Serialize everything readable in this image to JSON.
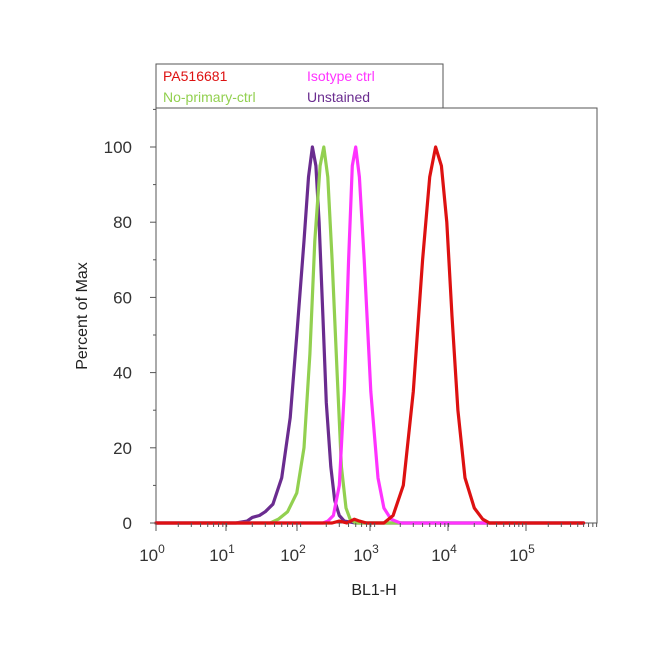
{
  "chart_data": {
    "type": "line",
    "xlabel": "BL1-H",
    "ylabel": "Percent of Max",
    "xscale": "log",
    "xlim": [
      1,
      600000
    ],
    "ylim": [
      0,
      110
    ],
    "y_ticks": [
      "0",
      "20",
      "40",
      "60",
      "80",
      "100"
    ],
    "x_ticks": [
      {
        "base": "10",
        "exp": "0"
      },
      {
        "base": "10",
        "exp": "1"
      },
      {
        "base": "10",
        "exp": "2"
      },
      {
        "base": "10",
        "exp": "3"
      },
      {
        "base": "10",
        "exp": "4"
      },
      {
        "base": "10",
        "exp": "5"
      }
    ],
    "grid": false,
    "legend_position": "top-left",
    "series": [
      {
        "name": "Unstained",
        "color": "#6a2c8f",
        "points": [
          [
            1,
            0
          ],
          [
            12,
            0
          ],
          [
            17,
            0.5
          ],
          [
            20,
            1.5
          ],
          [
            25,
            2
          ],
          [
            30,
            3
          ],
          [
            38,
            5
          ],
          [
            50,
            12
          ],
          [
            65,
            28
          ],
          [
            80,
            50
          ],
          [
            100,
            75
          ],
          [
            115,
            92
          ],
          [
            130,
            100
          ],
          [
            145,
            95
          ],
          [
            160,
            80
          ],
          [
            180,
            55
          ],
          [
            200,
            32
          ],
          [
            230,
            15
          ],
          [
            260,
            6
          ],
          [
            300,
            2
          ],
          [
            350,
            0.5
          ],
          [
            500,
            0
          ],
          [
            600000,
            0
          ]
        ]
      },
      {
        "name": "No-primary-ctrl",
        "color": "#92d050",
        "points": [
          [
            1,
            0
          ],
          [
            35,
            0
          ],
          [
            45,
            1
          ],
          [
            60,
            3
          ],
          [
            80,
            8
          ],
          [
            100,
            20
          ],
          [
            120,
            45
          ],
          [
            140,
            75
          ],
          [
            165,
            95
          ],
          [
            185,
            100
          ],
          [
            210,
            92
          ],
          [
            240,
            70
          ],
          [
            280,
            40
          ],
          [
            320,
            15
          ],
          [
            370,
            4
          ],
          [
            420,
            1
          ],
          [
            500,
            0
          ],
          [
            600000,
            0
          ]
        ]
      },
      {
        "name": "Isotype ctrl",
        "color": "#ff33ff",
        "points": [
          [
            1,
            0
          ],
          [
            180,
            0
          ],
          [
            210,
            0.5
          ],
          [
            250,
            2
          ],
          [
            300,
            10
          ],
          [
            350,
            35
          ],
          [
            400,
            70
          ],
          [
            450,
            95
          ],
          [
            500,
            100
          ],
          [
            560,
            92
          ],
          [
            650,
            70
          ],
          [
            800,
            35
          ],
          [
            1000,
            12
          ],
          [
            1200,
            4
          ],
          [
            1500,
            1
          ],
          [
            2000,
            0
          ],
          [
            600000,
            0
          ]
        ]
      },
      {
        "name": "PA516681",
        "color": "#dd1111",
        "points": [
          [
            1,
            0
          ],
          [
            240,
            0
          ],
          [
            300,
            0.5
          ],
          [
            380,
            0
          ],
          [
            480,
            1
          ],
          [
            560,
            0.5
          ],
          [
            700,
            0
          ],
          [
            900,
            0
          ],
          [
            1200,
            0
          ],
          [
            1600,
            2
          ],
          [
            2200,
            10
          ],
          [
            3000,
            35
          ],
          [
            4000,
            70
          ],
          [
            5000,
            92
          ],
          [
            6000,
            100
          ],
          [
            7200,
            95
          ],
          [
            8500,
            80
          ],
          [
            10000,
            55
          ],
          [
            12000,
            30
          ],
          [
            15000,
            12
          ],
          [
            20000,
            4
          ],
          [
            26000,
            1
          ],
          [
            32000,
            0
          ],
          [
            600000,
            0
          ]
        ]
      }
    ]
  },
  "legend": {
    "items": [
      {
        "label": "PA516681",
        "color": "#dd1111"
      },
      {
        "label": "Isotype ctrl",
        "color": "#ff33ff"
      },
      {
        "label": "No-primary-ctrl",
        "color": "#92d050"
      },
      {
        "label": "Unstained",
        "color": "#6a2c8f"
      }
    ]
  }
}
